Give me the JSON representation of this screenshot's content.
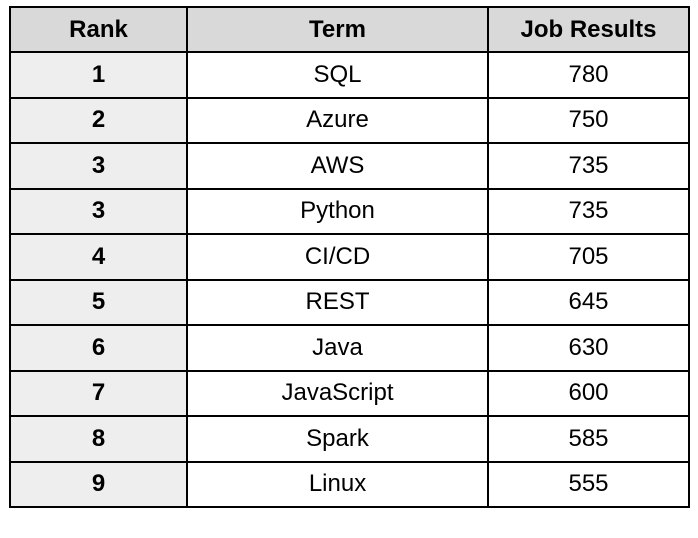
{
  "chart_data": {
    "type": "table",
    "columns": [
      "Rank",
      "Term",
      "Job Results"
    ],
    "rows": [
      {
        "rank": "1",
        "term": "SQL",
        "jobs": "780"
      },
      {
        "rank": "2",
        "term": "Azure",
        "jobs": "750"
      },
      {
        "rank": "3",
        "term": "AWS",
        "jobs": "735"
      },
      {
        "rank": "3",
        "term": "Python",
        "jobs": "735"
      },
      {
        "rank": "4",
        "term": "CI/CD",
        "jobs": "705"
      },
      {
        "rank": "5",
        "term": "REST",
        "jobs": "645"
      },
      {
        "rank": "6",
        "term": "Java",
        "jobs": "630"
      },
      {
        "rank": "7",
        "term": "JavaScript",
        "jobs": "600"
      },
      {
        "rank": "8",
        "term": "Spark",
        "jobs": "585"
      },
      {
        "rank": "9",
        "term": "Linux",
        "jobs": "555"
      }
    ]
  },
  "colors": {
    "header_bg": "#d9d9d9",
    "rank_bg": "#eeeeee",
    "cell_bg": "#ffffff",
    "border": "#000000"
  }
}
